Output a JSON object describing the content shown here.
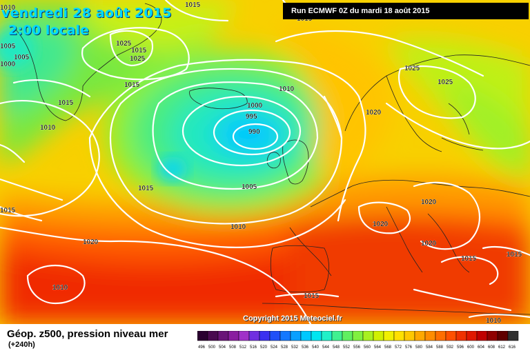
{
  "header": {
    "date": "vendredi 28 août 2015",
    "time": "2:00 locale",
    "run": "Run ECMWF 0Z du mardi 18 août 2015"
  },
  "footer": {
    "title": "Géop. z500, pression niveau mer",
    "lead": "(+240h)",
    "copyright": "Copyright 2015 Meteociel.fr"
  },
  "scale": {
    "values": [
      "496",
      "500",
      "504",
      "508",
      "512",
      "516",
      "520",
      "524",
      "528",
      "532",
      "536",
      "540",
      "544",
      "548",
      "552",
      "556",
      "560",
      "564",
      "568",
      "572",
      "576",
      "580",
      "584",
      "588",
      "592",
      "596",
      "600",
      "604",
      "608",
      "612",
      "616"
    ],
    "colors": [
      "#2a0030",
      "#4a0a50",
      "#6a1478",
      "#8a1ea0",
      "#a030c8",
      "#7030e0",
      "#3a30f0",
      "#2050f8",
      "#1478ff",
      "#0aa0ff",
      "#00c8ff",
      "#00e6f0",
      "#20f0c8",
      "#40f090",
      "#60f060",
      "#80f040",
      "#a8f020",
      "#d0f000",
      "#f0f000",
      "#ffe000",
      "#ffc800",
      "#ffa800",
      "#ff8c00",
      "#ff6e00",
      "#ff5000",
      "#f03200",
      "#e01800",
      "#c00000",
      "#900000",
      "#600000",
      "#303030"
    ]
  },
  "isobars": [
    "1010",
    "1015",
    "1015",
    "1005",
    "1000",
    "1005",
    "1025",
    "1015",
    "1025",
    "1015",
    "1015",
    "1010",
    "1010",
    "1000",
    "995",
    "990",
    "1025",
    "1025",
    "1020",
    "1015",
    "1005",
    "1020",
    "1020",
    "1020",
    "1010",
    "1010",
    "1015",
    "1015",
    "1015",
    "1015",
    "1010"
  ]
}
